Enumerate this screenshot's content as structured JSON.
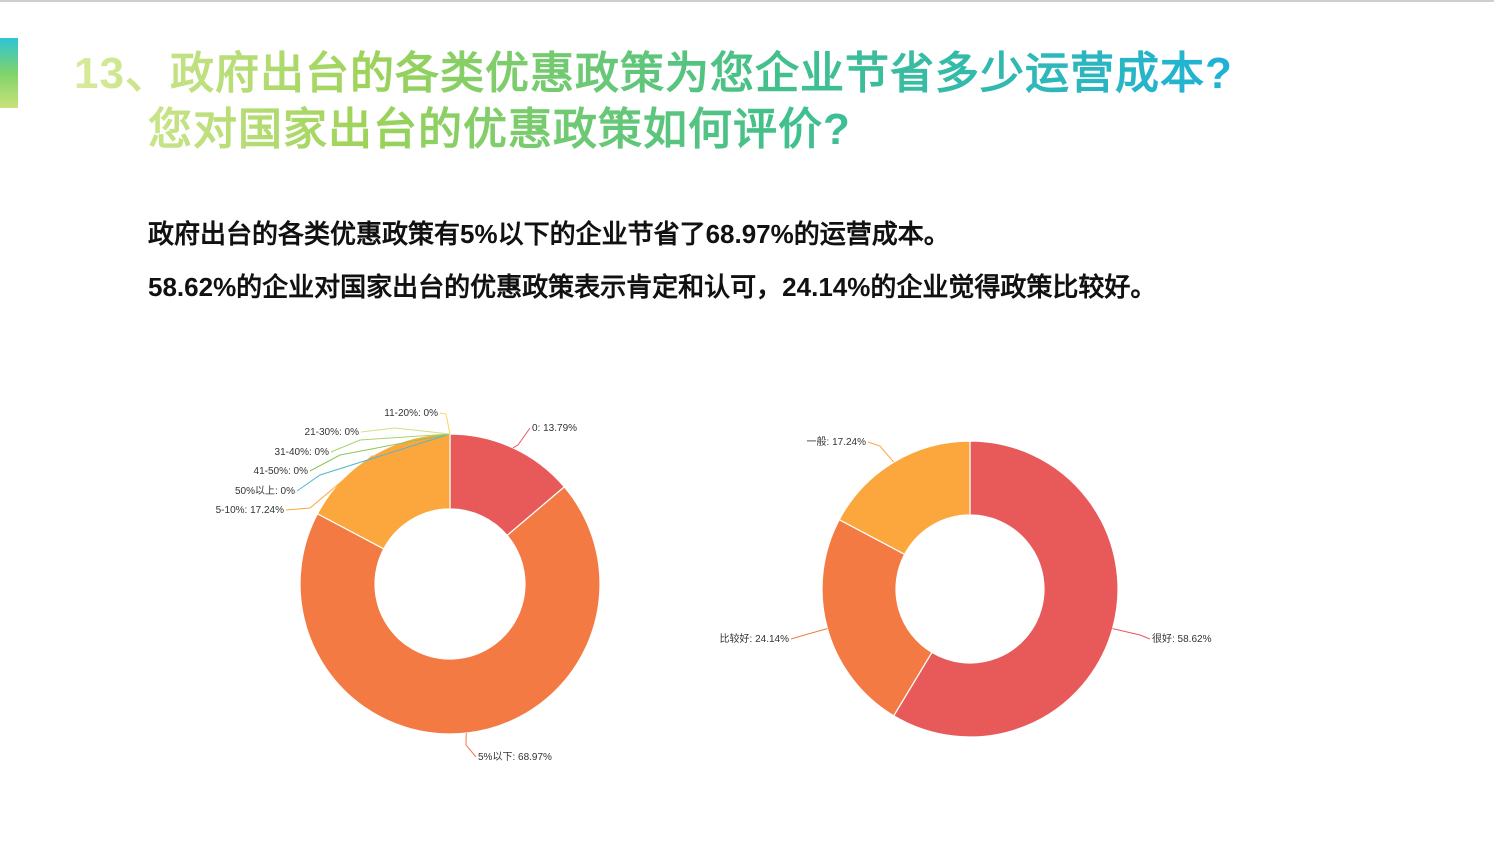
{
  "header": {
    "title_line1": "13、政府出台的各类优惠政策为您企业节省多少运营成本?",
    "title_line2": "您对国家出台的优惠政策如何评价?"
  },
  "summary": {
    "line1": "政府出台的各类优惠政策有5%以下的企业节省了68.97%的运营成本。",
    "line2": "58.62%的企业对国家出台的优惠政策表示肯定和认可，24.14%的企业觉得政策比较好。"
  },
  "chart_data": [
    {
      "type": "pie",
      "donut": true,
      "title": "",
      "slices": [
        {
          "label": "0",
          "value": 13.79,
          "text": "0: 13.79%",
          "color": "#e85a5a"
        },
        {
          "label": "5%以下",
          "value": 68.97,
          "text": "5%以下: 68.97%",
          "color": "#f37a43"
        },
        {
          "label": "5-10%",
          "value": 17.24,
          "text": "5-10%: 17.24%",
          "color": "#fba73d"
        },
        {
          "label": "50%以上",
          "value": 0,
          "text": "50%以上: 0%",
          "color": "#4fb9c9"
        },
        {
          "label": "41-50%",
          "value": 0,
          "text": "41-50%: 0%",
          "color": "#8cc55a"
        },
        {
          "label": "31-40%",
          "value": 0,
          "text": "31-40%: 0%",
          "color": "#a8d46a"
        },
        {
          "label": "21-30%",
          "value": 0,
          "text": "21-30%: 0%",
          "color": "#cfe08a"
        },
        {
          "label": "11-20%",
          "value": 0,
          "text": "11-20%: 0%",
          "color": "#f5da5c"
        }
      ]
    },
    {
      "type": "pie",
      "donut": true,
      "title": "",
      "slices": [
        {
          "label": "很好",
          "value": 58.62,
          "text": "很好: 58.62%",
          "color": "#e85a5a"
        },
        {
          "label": "比较好",
          "value": 24.14,
          "text": "比较好: 24.14%",
          "color": "#f37a43"
        },
        {
          "label": "一般",
          "value": 17.24,
          "text": "一般: 17.24%",
          "color": "#fba73d"
        }
      ]
    }
  ]
}
